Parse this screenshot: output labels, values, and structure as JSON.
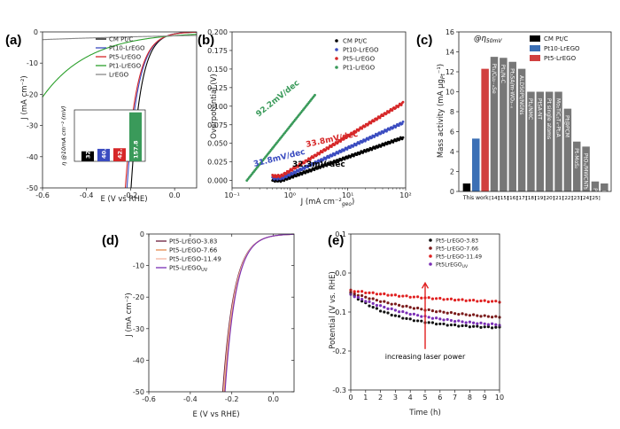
{
  "panels": [
    {
      "id": "a",
      "label": "(a)",
      "type": "line",
      "xlabel": "E (V vs RHE)",
      "ylabel": "J (mA cm⁻²)",
      "xlim": [
        -0.6,
        0.1
      ],
      "ylim": [
        -50,
        0
      ],
      "xticks": [
        "-0.6",
        "-0.4",
        "-0.2",
        "0.0"
      ],
      "xtick_vals": [
        -0.6,
        -0.4,
        -0.2,
        0.0
      ],
      "yticks": [
        "0",
        "-10",
        "-20",
        "-30",
        "-40",
        "-50"
      ],
      "ytick_vals": [
        0,
        -10,
        -20,
        -30,
        -40,
        -50
      ],
      "series": [
        {
          "name": "CM Pt/C",
          "color": "#000000",
          "onset": -0.03,
          "steep": 0.045
        },
        {
          "name": "Pt10-LrEGO",
          "color": "#3b4cc0",
          "onset": -0.03,
          "steep": 0.05
        },
        {
          "name": "Pt5-LrEGO",
          "color": "#d62728",
          "onset": -0.03,
          "steep": 0.052
        },
        {
          "name": "Pt1-LrEGO",
          "color": "#2ca02c",
          "onset": 0.0,
          "steep": 0.21
        },
        {
          "name": "LrEGO",
          "color": "#888888",
          "onset": 0.05,
          "steep": 0.9
        }
      ],
      "inset": {
        "ylabel": "η @10mA cm⁻² (mV)",
        "bars": [
          {
            "label": "32.2",
            "value": 32.2,
            "color": "#000000"
          },
          {
            "label": "40.2",
            "value": 40.2,
            "color": "#3b4cc0"
          },
          {
            "label": "42.2",
            "value": 42.2,
            "color": "#d62728"
          },
          {
            "label": "157.8",
            "value": 157.8,
            "color": "#3a9a5a"
          }
        ],
        "ymax": 160
      }
    },
    {
      "id": "b",
      "label": "(b)",
      "type": "scatter",
      "xlabel": "J (mA cm⁻²",
      "xlabel_sub": "geo",
      "xlabel_end": ")",
      "ylabel": "Overpotential (V)",
      "xscale": "log",
      "xlim": [
        0.1,
        100
      ],
      "ylim": [
        -0.01,
        0.2
      ],
      "xticks": [
        "10⁻¹",
        "10⁰",
        "10¹",
        "10²"
      ],
      "xtick_vals": [
        0.1,
        1,
        10,
        100
      ],
      "yticks": [
        "0.000",
        "0.025",
        "0.050",
        "0.075",
        "0.100",
        "0.125",
        "0.150",
        "0.175",
        "0.200"
      ],
      "ytick_vals": [
        0,
        0.025,
        0.05,
        0.075,
        0.1,
        0.125,
        0.15,
        0.175,
        0.2
      ],
      "series": [
        {
          "name": "CM Pt/C",
          "color": "#000000",
          "slope": 0.0323,
          "j0": 0.5,
          "j1": 90,
          "eta0": 0.0
        },
        {
          "name": "Pt10-LrEGO",
          "color": "#3b4cc0",
          "slope": 0.0318,
          "j0": 0.5,
          "j1": 90,
          "eta0": 0.0
        },
        {
          "name": "Pt5-LrEGO",
          "color": "#d62728",
          "slope": 0.0338,
          "j0": 0.5,
          "j1": 90,
          "eta0": 0.0
        },
        {
          "name": "Pt1-LrEGO",
          "color": "#3a9a5a",
          "slope": 0.0922,
          "j0": 0.18,
          "j1": 2.7,
          "eta0": 0.0
        }
      ],
      "annotations": [
        {
          "text": "92.2mV/dec",
          "color": "#3a9a5a"
        },
        {
          "text": "33.8mV/dec",
          "color": "#d62728"
        },
        {
          "text": "31.8mV/dec",
          "color": "#3b4cc0"
        },
        {
          "text": "32.3mV/dec",
          "color": "#000000"
        }
      ]
    },
    {
      "id": "c",
      "label": "(c)",
      "type": "bar",
      "title": "@η",
      "title_sub": "50mV",
      "ylabel": "Mass activity (mA μg",
      "ylabel_sub": "Pt",
      "ylabel_end": "⁻¹)",
      "ylim": [
        0,
        16
      ],
      "yticks": [
        "0",
        "2",
        "4",
        "6",
        "8",
        "10",
        "12",
        "14",
        "16"
      ],
      "ytick_vals": [
        0,
        2,
        4,
        6,
        8,
        10,
        12,
        14,
        16
      ],
      "legend": [
        {
          "name": "CM Pt/C",
          "color": "#000000"
        },
        {
          "name": "Pt10-LrEGO",
          "color": "#3b6fb5"
        },
        {
          "name": "Pt5-LrEGO",
          "color": "#d1403f"
        }
      ],
      "bars": [
        {
          "value": 0.8,
          "color": "#000000",
          "label": ""
        },
        {
          "value": 5.3,
          "color": "#3b6fb5",
          "label": ""
        },
        {
          "value": 12.3,
          "color": "#d1403f",
          "label": ""
        },
        {
          "value": 13.5,
          "color": "#777777",
          "label": "Pt₁/Cu₂₋ₓSe"
        },
        {
          "value": 13.4,
          "color": "#777777",
          "label": "Pt₁/N-C"
        },
        {
          "value": 13.0,
          "color": "#777777",
          "label": "Pt₁SA/m-WO₃₋ₓ"
        },
        {
          "value": 12.3,
          "color": "#777777",
          "label": "ALD50Pt/NGNs"
        },
        {
          "value": 10.0,
          "color": "#777777",
          "label": "Pt₁/NMC"
        },
        {
          "value": 10.0,
          "color": "#777777",
          "label": "PtSA-NT"
        },
        {
          "value": 10.0,
          "color": "#777777",
          "label": "Pt single atoms"
        },
        {
          "value": 10.0,
          "color": "#777777",
          "label": "Mo₂TiC₂Tₓ-PtₛA"
        },
        {
          "value": 8.3,
          "color": "#777777",
          "label": "Pt@PCM"
        },
        {
          "value": 5.0,
          "color": "#777777",
          "label": "Pt-MoS₂"
        },
        {
          "value": 4.5,
          "color": "#777777",
          "label": "PtOₓ/MWCNTs"
        },
        {
          "value": 1.0,
          "color": "#777777",
          "label": "Pt₁@Fe-N-C"
        },
        {
          "value": 0.8,
          "color": "#777777",
          "label": "Pt/def-WO₃@CFC"
        }
      ],
      "xlabels": [
        "This work",
        "[14]",
        "[15]",
        "[16]",
        "[17]",
        "[18]",
        "[19]",
        "[20]",
        "[21]",
        "[22]",
        "[23]",
        "[24]",
        "[25]"
      ]
    },
    {
      "id": "d",
      "label": "(d)",
      "type": "line",
      "xlabel": "E (V vs RHE)",
      "ylabel": "J (mA cm⁻²)",
      "xlim": [
        -0.6,
        0.1
      ],
      "ylim": [
        -50,
        0
      ],
      "xticks": [
        "-0.6",
        "-0.4",
        "-0.2",
        "0.0"
      ],
      "xtick_vals": [
        -0.6,
        -0.4,
        -0.2,
        0.0
      ],
      "yticks": [
        "0",
        "-10",
        "-20",
        "-30",
        "-40",
        "-50"
      ],
      "ytick_vals": [
        0,
        -10,
        -20,
        -30,
        -40,
        -50
      ],
      "series": [
        {
          "name": "Pt5-LrEGO-3.83",
          "color": "#6b1e3c",
          "onset": -0.035,
          "steep": 0.056
        },
        {
          "name": "Pt5-LrEGO-7.66",
          "color": "#e58a4f",
          "onset": -0.035,
          "steep": 0.054
        },
        {
          "name": "Pt5-LrEGO-11.49",
          "color": "#f3b5a1",
          "onset": -0.035,
          "steep": 0.055
        },
        {
          "name": "Pt5-LrEGO",
          "name_sub": "UV",
          "color": "#7a2fb5",
          "onset": -0.035,
          "steep": 0.053
        }
      ]
    },
    {
      "id": "e",
      "label": "(e)",
      "type": "scatter",
      "xlabel": "Time (h)",
      "ylabel": "Potential (V vs. RHE)",
      "xlim": [
        0,
        10
      ],
      "ylim": [
        -0.3,
        0.1
      ],
      "xticks": [
        "0",
        "1",
        "2",
        "3",
        "4",
        "5",
        "6",
        "7",
        "8",
        "9",
        "10"
      ],
      "xtick_vals": [
        0,
        1,
        2,
        3,
        4,
        5,
        6,
        7,
        8,
        9,
        10
      ],
      "yticks": [
        "0.1",
        "0.0",
        "-0.1",
        "-0.2",
        "-0.3"
      ],
      "ytick_vals": [
        0.1,
        0.0,
        -0.1,
        -0.2,
        -0.3
      ],
      "series": [
        {
          "name": "Pt5-LrEGO-3.83",
          "color": "#111111",
          "start": -0.052,
          "end": -0.143,
          "tau": 3.0
        },
        {
          "name": "Pt5-LrEGO-7.66",
          "color": "#7a1a1a",
          "start": -0.05,
          "end": -0.128,
          "tau": 6.0
        },
        {
          "name": "Pt5-LrEGO-11.49",
          "color": "#e02020",
          "start": -0.045,
          "end": -0.085,
          "tau": 8.0
        },
        {
          "name": "Pt5LrEGO",
          "name_sub": "UV",
          "color": "#7a2fb5",
          "start": -0.055,
          "end": -0.145,
          "tau": 5.0
        }
      ],
      "annotation": "increasing laser power",
      "arrow_color": "#e02020"
    }
  ]
}
